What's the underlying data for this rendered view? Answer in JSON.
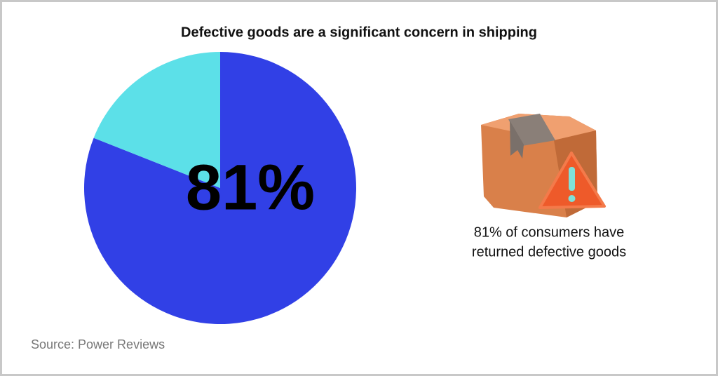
{
  "chart_data": {
    "type": "pie",
    "title": "Defective goods are a significant concern in shipping",
    "values": [
      81,
      19
    ],
    "value_labels": [
      "81%",
      null
    ],
    "colors": [
      "#3140e6",
      "#5ce0e8"
    ],
    "caption": [
      "81% of consumers have",
      "returned defective goods"
    ],
    "source": "Source: Power Reviews"
  }
}
